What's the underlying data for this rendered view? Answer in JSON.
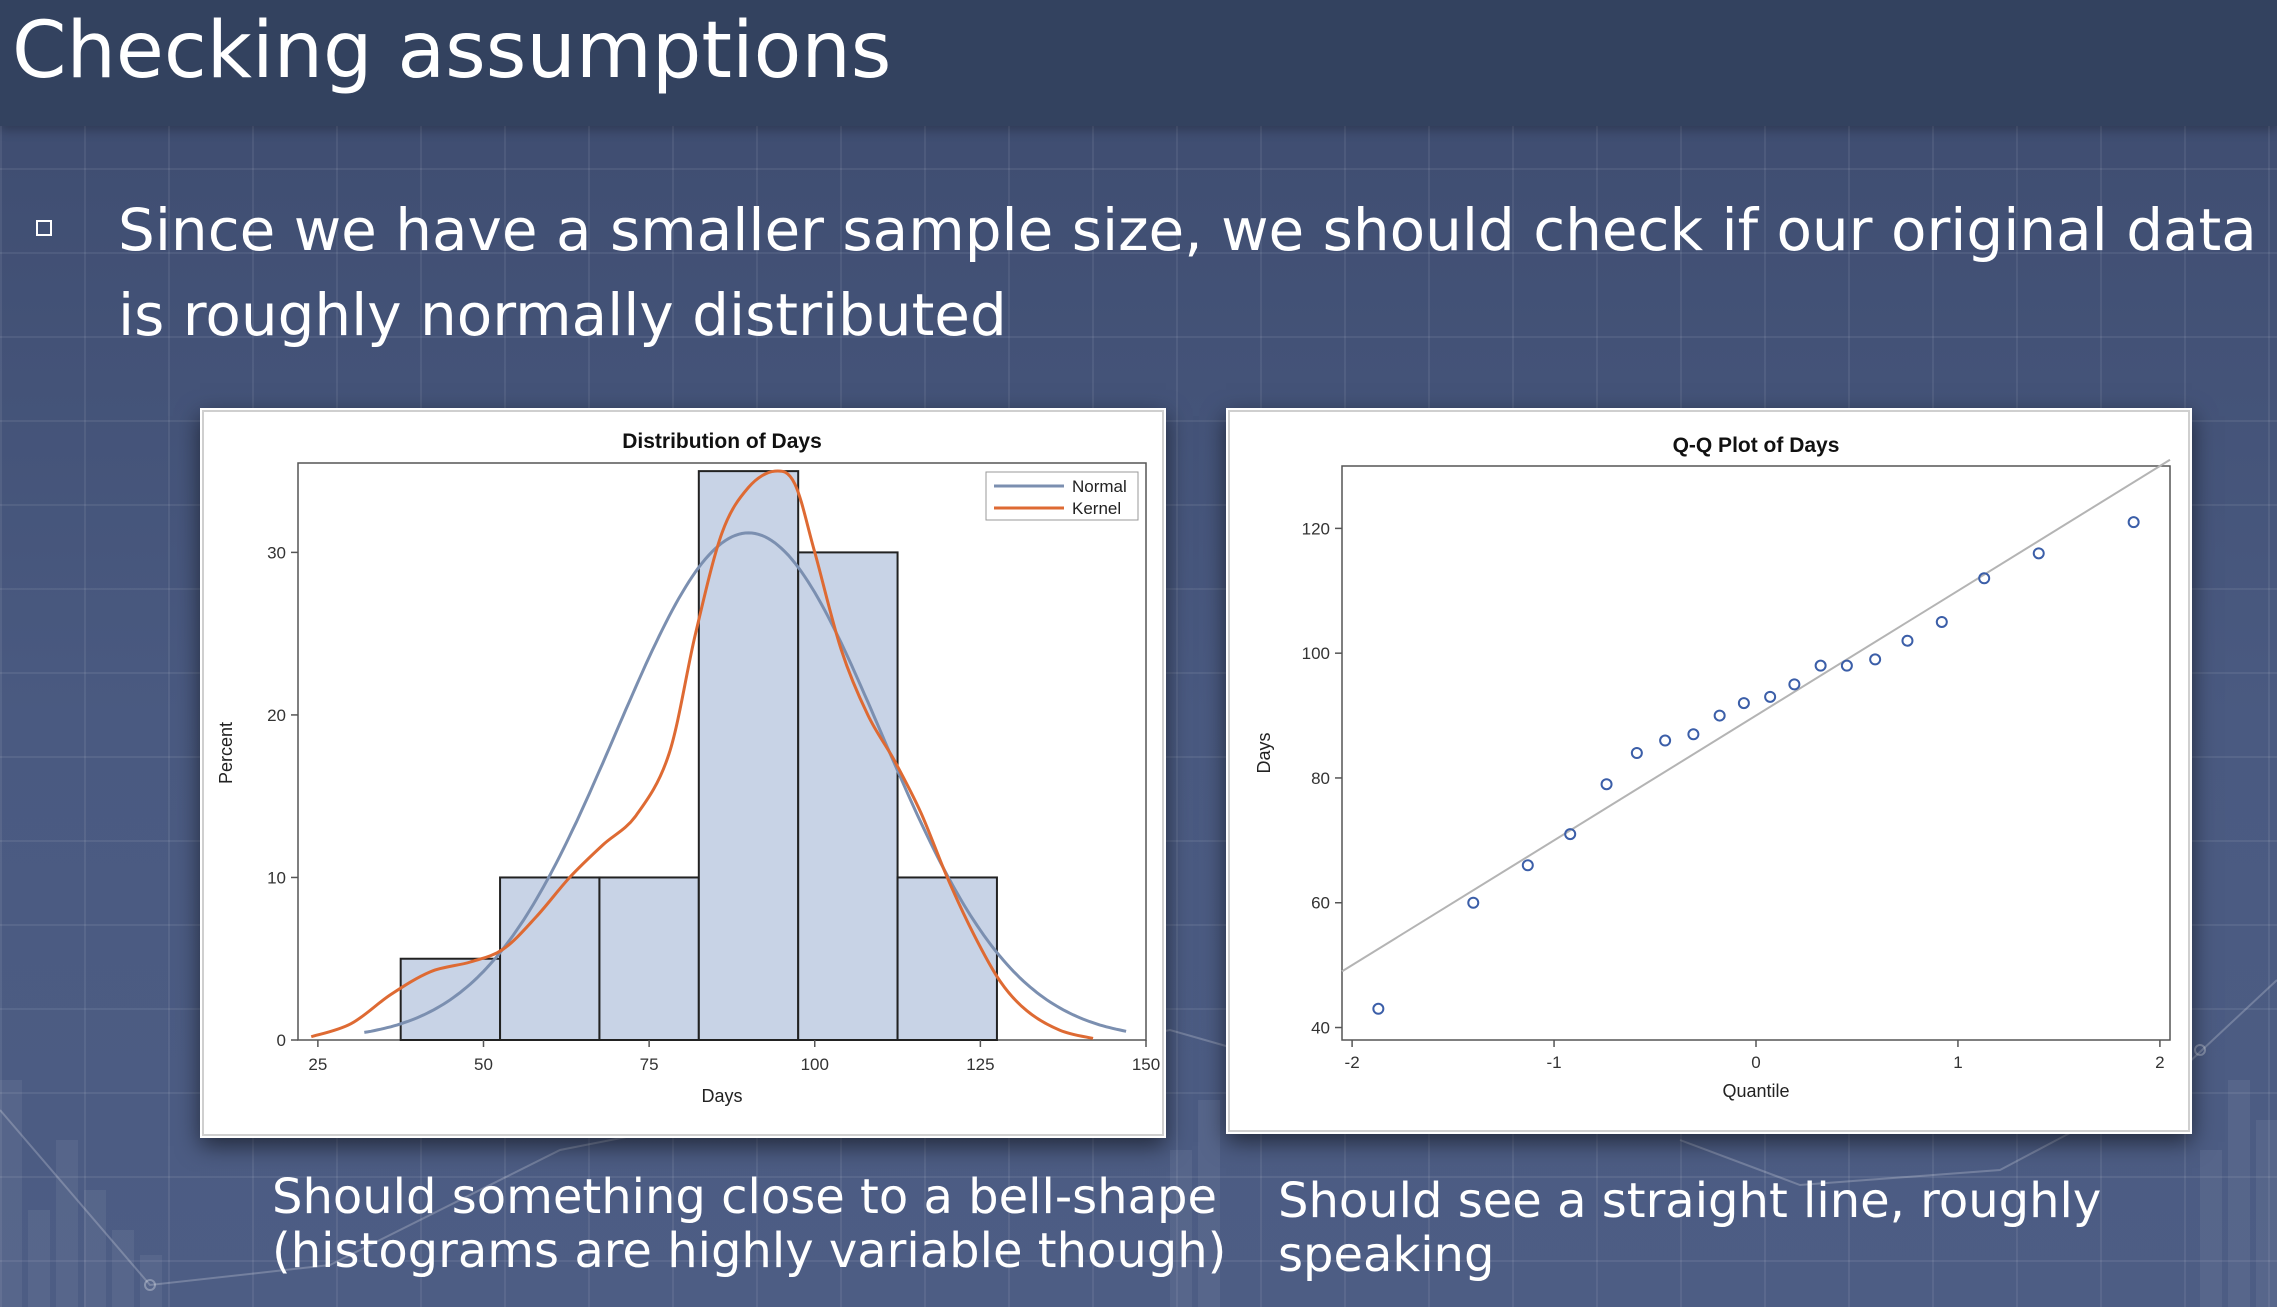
{
  "slide": {
    "title": "Checking assumptions",
    "bullet": "Since we have a smaller sample size, we should check if our original data is roughly normally distributed"
  },
  "captions": {
    "histogram": [
      "Should something close to a bell-shape",
      "(histograms are highly variable though)"
    ],
    "qq": [
      "Should see a straight line, roughly",
      "speaking"
    ]
  },
  "chart_data": [
    {
      "type": "bar",
      "title": "Distribution of Days",
      "xlabel": "Days",
      "ylabel": "Percent",
      "bins": [
        {
          "from": 37.5,
          "to": 52.5,
          "percent": 5
        },
        {
          "from": 52.5,
          "to": 67.5,
          "percent": 10
        },
        {
          "from": 67.5,
          "to": 82.5,
          "percent": 10
        },
        {
          "from": 82.5,
          "to": 97.5,
          "percent": 35
        },
        {
          "from": 97.5,
          "to": 112.5,
          "percent": 30
        },
        {
          "from": 112.5,
          "to": 127.5,
          "percent": 10
        }
      ],
      "xlim": [
        22,
        150
      ],
      "ylim": [
        0,
        35.5
      ],
      "xticks": [
        "25",
        "50",
        "75",
        "100",
        "125",
        "150"
      ],
      "yticks": [
        "0",
        "10",
        "20",
        "30"
      ],
      "legend": {
        "position": "top-right",
        "entries": [
          "Normal",
          "Kernel"
        ]
      },
      "series": [
        {
          "name": "Normal",
          "color": "#7b8fb0",
          "mean": 90,
          "sd": 20,
          "x_range": [
            32,
            147
          ]
        },
        {
          "name": "Kernel",
          "color": "#de6a33",
          "points": [
            [
              24,
              0.2
            ],
            [
              30,
              1.0
            ],
            [
              36,
              2.8
            ],
            [
              42,
              4.2
            ],
            [
              48,
              4.8
            ],
            [
              53,
              5.6
            ],
            [
              58,
              7.6
            ],
            [
              63,
              10.0
            ],
            [
              68,
              12.0
            ],
            [
              73,
              13.8
            ],
            [
              78,
              17.6
            ],
            [
              82,
              25.0
            ],
            [
              86,
              31.2
            ],
            [
              90,
              34.0
            ],
            [
              94,
              35.0
            ],
            [
              97,
              34.2
            ],
            [
              100,
              30.0
            ],
            [
              104,
              24.0
            ],
            [
              108,
              20.0
            ],
            [
              112,
              17.2
            ],
            [
              116,
              14.0
            ],
            [
              120,
              10.0
            ],
            [
              124,
              6.5
            ],
            [
              128,
              3.6
            ],
            [
              132,
              1.8
            ],
            [
              137,
              0.6
            ],
            [
              142,
              0.1
            ]
          ]
        }
      ],
      "colors": {
        "bars": "#c8d3e6",
        "bar_edge": "#222222"
      }
    },
    {
      "type": "scatter",
      "title": "Q-Q Plot of Days",
      "xlabel": "Quantile",
      "ylabel": "Days",
      "xlim": [
        -2.05,
        2.05
      ],
      "ylim": [
        38,
        130
      ],
      "xticks": [
        "-2",
        "-1",
        "0",
        "1",
        "2"
      ],
      "yticks": [
        "40",
        "60",
        "80",
        "100",
        "120"
      ],
      "points": [
        [
          -1.87,
          43
        ],
        [
          -1.4,
          60
        ],
        [
          -1.13,
          66
        ],
        [
          -0.92,
          71
        ],
        [
          -0.74,
          79
        ],
        [
          -0.59,
          84
        ],
        [
          -0.45,
          86
        ],
        [
          -0.31,
          87
        ],
        [
          -0.18,
          90
        ],
        [
          -0.06,
          92
        ],
        [
          0.07,
          93
        ],
        [
          0.19,
          95
        ],
        [
          0.32,
          98
        ],
        [
          0.45,
          98
        ],
        [
          0.59,
          99
        ],
        [
          0.75,
          102
        ],
        [
          0.92,
          105
        ],
        [
          1.13,
          112
        ],
        [
          1.4,
          116
        ],
        [
          1.87,
          121
        ]
      ],
      "reference_line": {
        "intercept": 90,
        "slope": 20
      },
      "colors": {
        "points": "#3b5ea8",
        "line": "#b4b4b4"
      }
    }
  ]
}
